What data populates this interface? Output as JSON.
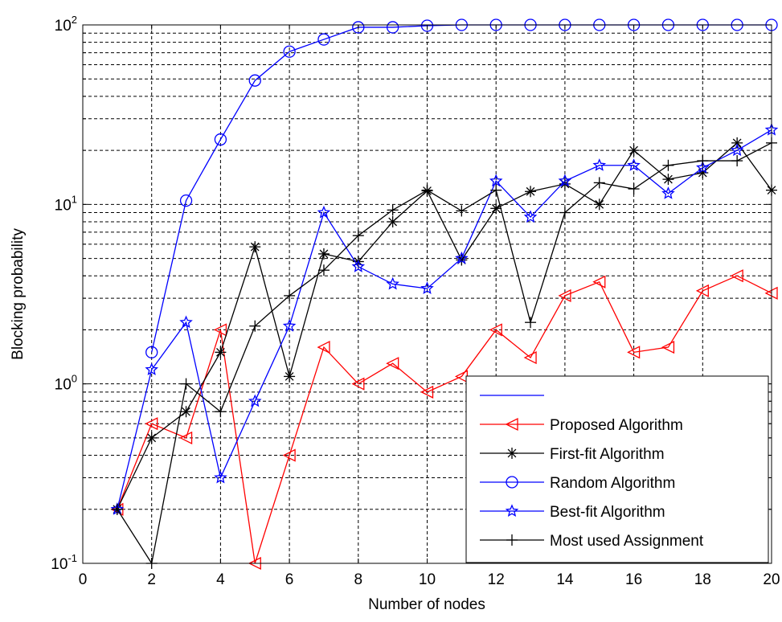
{
  "chart_data": {
    "type": "line",
    "title": "",
    "xlabel": "Number of nodes",
    "ylabel": "Blocking probability",
    "xlim": [
      0,
      20
    ],
    "ylim": [
      0.1,
      100
    ],
    "yscale": "log",
    "grid": true,
    "legend_position": "bottom-right",
    "x_ticks": [
      "0",
      "2",
      "4",
      "6",
      "8",
      "10",
      "12",
      "14",
      "16",
      "18",
      "20"
    ],
    "y_ticks": [
      {
        "base": "10",
        "exp": "-1",
        "value": 0.1
      },
      {
        "base": "10",
        "exp": "0",
        "value": 1
      },
      {
        "base": "10",
        "exp": "1",
        "value": 10
      },
      {
        "base": "10",
        "exp": "2",
        "value": 100
      }
    ],
    "series": [
      {
        "name": "",
        "color": "#0000ff",
        "marker": "none",
        "x": [],
        "y": []
      },
      {
        "name": "Proposed Algorithm",
        "color": "#ff0000",
        "marker": "triangle-left",
        "x": [
          1,
          2,
          3,
          4,
          5,
          6,
          7,
          8,
          9,
          10,
          11,
          12,
          13,
          14,
          15,
          16,
          17,
          18,
          19,
          20
        ],
        "y": [
          0.2,
          0.6,
          0.5,
          2.0,
          0.1,
          0.4,
          1.6,
          1.0,
          1.3,
          0.9,
          1.1,
          2.0,
          1.4,
          3.1,
          3.7,
          1.5,
          1.6,
          3.3,
          4.0,
          3.2
        ]
      },
      {
        "name": "First-fit Algorithm",
        "color": "#000000",
        "marker": "asterisk",
        "x": [
          1,
          2,
          3,
          4,
          5,
          6,
          7,
          8,
          9,
          10,
          11,
          12,
          13,
          14,
          15,
          16,
          17,
          18,
          19,
          20
        ],
        "y": [
          0.2,
          0.5,
          0.7,
          1.5,
          5.8,
          1.1,
          5.3,
          4.8,
          8.0,
          11.9,
          4.9,
          9.5,
          11.8,
          13.0,
          10.0,
          20.0,
          13.8,
          15.0,
          22.0,
          12.0
        ]
      },
      {
        "name": "Random Algorithm",
        "color": "#0000ff",
        "marker": "circle",
        "x": [
          2,
          3,
          4,
          5,
          6,
          7,
          8,
          9,
          10,
          11,
          12,
          13,
          14,
          15,
          16,
          17,
          18,
          19,
          20
        ],
        "y": [
          1.5,
          10.5,
          23.0,
          49.0,
          71.0,
          83.0,
          97.0,
          97.0,
          99.0,
          100,
          100,
          100,
          100,
          100,
          100,
          100,
          100,
          100,
          100
        ]
      },
      {
        "name": "Best-fit Algorithm",
        "color": "#0000ff",
        "marker": "star",
        "x": [
          1,
          2,
          3,
          4,
          5,
          6,
          7,
          8,
          9,
          10,
          11,
          12,
          13,
          14,
          15,
          16,
          17,
          18,
          19,
          20
        ],
        "y": [
          0.2,
          1.2,
          2.2,
          0.3,
          0.8,
          2.1,
          9.0,
          4.5,
          3.6,
          3.4,
          5.0,
          13.5,
          8.5,
          13.5,
          16.5,
          16.5,
          11.5,
          16.0,
          20.0,
          26.0
        ]
      },
      {
        "name": "Most used Assignment",
        "color": "#000000",
        "marker": "plus",
        "x": [
          1,
          2,
          3,
          4,
          5,
          6,
          7,
          8,
          9,
          10,
          11,
          12,
          13,
          14,
          15,
          16,
          17,
          18,
          19,
          20
        ],
        "y": [
          0.2,
          0.1,
          1.0,
          0.7,
          2.1,
          3.1,
          4.3,
          6.7,
          9.3,
          12.0,
          9.2,
          12.0,
          2.2,
          9.0,
          13.2,
          12.2,
          16.5,
          17.5,
          17.5,
          22.0
        ]
      }
    ]
  }
}
